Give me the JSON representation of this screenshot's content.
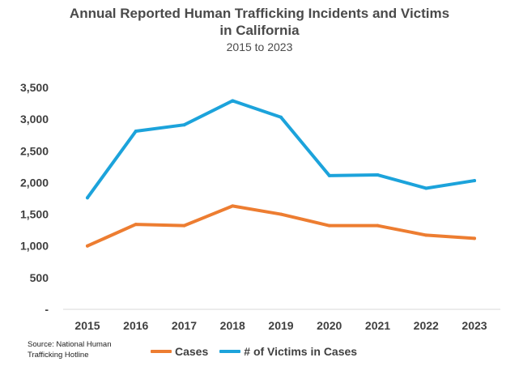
{
  "chart_data": {
    "type": "line",
    "title_lines": [
      "Annual Reported Human Trafficking Incidents and Victims",
      "in California"
    ],
    "subtitle": "2015 to 2023",
    "categories": [
      "2015",
      "2016",
      "2017",
      "2018",
      "2019",
      "2020",
      "2021",
      "2022",
      "2023"
    ],
    "series": [
      {
        "name": "Cases",
        "color": "#ED7D31",
        "values": [
          1000,
          1340,
          1320,
          1630,
          1500,
          1320,
          1320,
          1170,
          1120
        ]
      },
      {
        "name": "# of Victims in Cases",
        "color": "#1CA3DB",
        "values": [
          1760,
          2810,
          2910,
          3290,
          3030,
          2110,
          2120,
          1910,
          2030
        ]
      }
    ],
    "y_ticks": [
      {
        "value": 0,
        "label": "-"
      },
      {
        "value": 500,
        "label": "500"
      },
      {
        "value": 1000,
        "label": "1,000"
      },
      {
        "value": 1500,
        "label": "1,500"
      },
      {
        "value": 2000,
        "label": "2,000"
      },
      {
        "value": 2500,
        "label": "2,500"
      },
      {
        "value": 3000,
        "label": "3,000"
      },
      {
        "value": 3500,
        "label": "3,500"
      }
    ],
    "ylim": [
      0,
      3500
    ],
    "grid": false,
    "legend": "bottom",
    "axis_color": "#D9D9D9"
  },
  "source_note": [
    "Source: National Human",
    "Trafficking Hotline"
  ]
}
